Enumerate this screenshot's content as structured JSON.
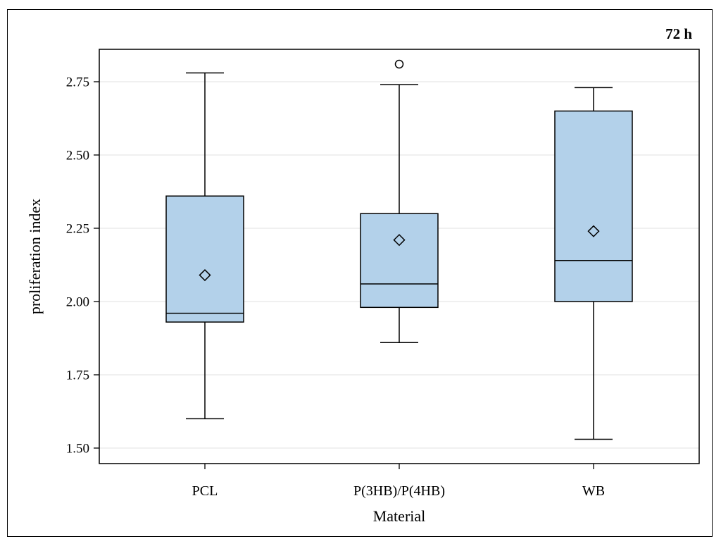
{
  "chart_data": {
    "type": "box",
    "panel_label": "72 h",
    "xlabel": "Material",
    "ylabel": "proliferation index",
    "ylim": [
      1.45,
      2.9
    ],
    "yticks": [
      1.5,
      1.75,
      2.0,
      2.25,
      2.5,
      2.75
    ],
    "ytick_labels": [
      "1.50",
      "1.75",
      "2.00",
      "2.25",
      "2.50",
      "2.75"
    ],
    "grid": "horizontal",
    "categories": [
      "PCL",
      "P(3HB)/P(4HB)",
      "WB"
    ],
    "boxes": [
      {
        "category": "PCL",
        "whisker_low": 1.6,
        "q1": 1.93,
        "median": 1.96,
        "q3": 2.36,
        "whisker_high": 2.78,
        "mean": 2.09,
        "outliers": []
      },
      {
        "category": "P(3HB)/P(4HB)",
        "whisker_low": 1.86,
        "q1": 1.98,
        "median": 2.06,
        "q3": 2.3,
        "whisker_high": 2.74,
        "mean": 2.21,
        "outliers": [
          2.81
        ]
      },
      {
        "category": "WB",
        "whisker_low": 1.53,
        "q1": 2.0,
        "median": 2.14,
        "q3": 2.65,
        "whisker_high": 2.73,
        "mean": 2.24,
        "outliers": []
      }
    ],
    "colors": {
      "box_fill": "#b3d1ea",
      "line": "#000000",
      "grid": "#e6e6e6"
    }
  }
}
